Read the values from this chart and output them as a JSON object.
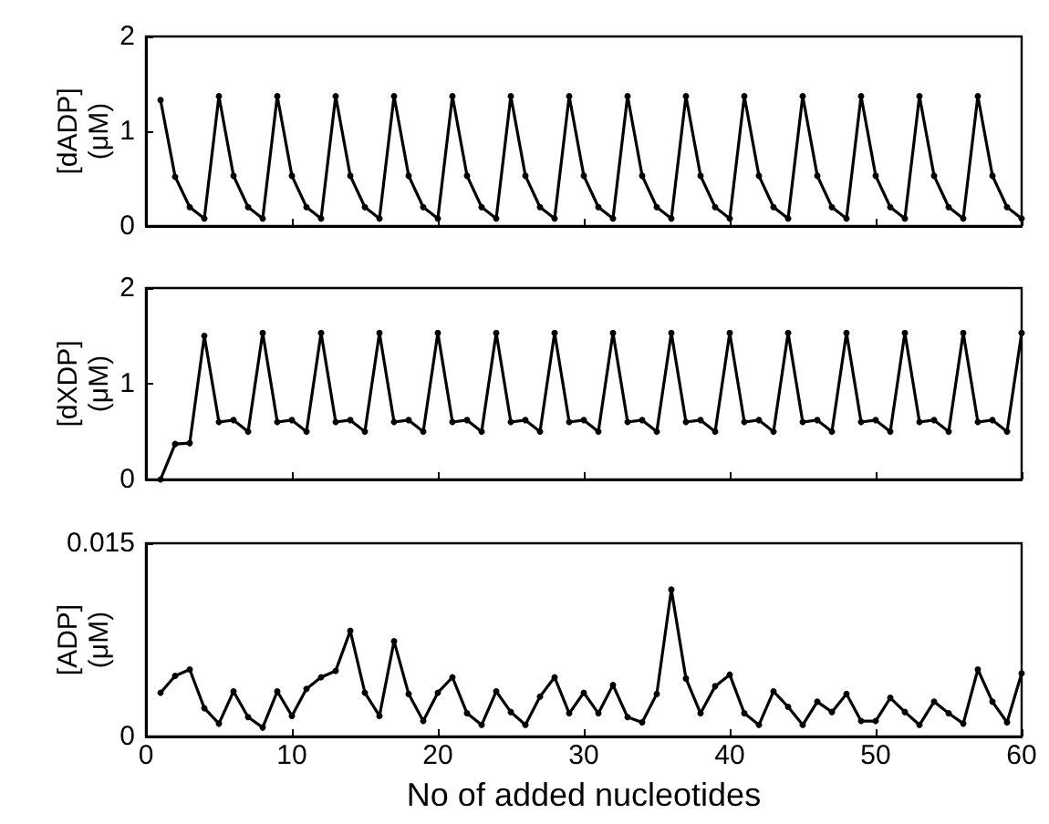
{
  "chart_data": [
    {
      "type": "line",
      "ylabel": "[dADP] (μM)",
      "xlim": [
        0,
        60
      ],
      "xticks": [
        0,
        10,
        20,
        30,
        40,
        50,
        60
      ],
      "ylim": [
        0,
        2
      ],
      "yticks": [
        0,
        1,
        2
      ],
      "tick_labels": "y",
      "marker": "circle",
      "line_style": "solid",
      "grid": false,
      "x": [
        1,
        2,
        3,
        4,
        5,
        6,
        7,
        8,
        9,
        10,
        11,
        12,
        13,
        14,
        15,
        16,
        17,
        18,
        19,
        20,
        21,
        22,
        23,
        24,
        25,
        26,
        27,
        28,
        29,
        30,
        31,
        32,
        33,
        34,
        35,
        36,
        37,
        38,
        39,
        40,
        41,
        42,
        43,
        44,
        45,
        46,
        47,
        48,
        49,
        50,
        51,
        52,
        53,
        54,
        55,
        56,
        57,
        58,
        59,
        60
      ],
      "series": [
        {
          "color": "#000000",
          "values": [
            1.33,
            0.52,
            0.2,
            0.08,
            1.37,
            0.53,
            0.2,
            0.08,
            1.37,
            0.53,
            0.2,
            0.08,
            1.37,
            0.53,
            0.2,
            0.08,
            1.37,
            0.53,
            0.2,
            0.08,
            1.37,
            0.53,
            0.2,
            0.08,
            1.37,
            0.53,
            0.2,
            0.08,
            1.37,
            0.53,
            0.2,
            0.08,
            1.37,
            0.53,
            0.2,
            0.08,
            1.37,
            0.53,
            0.2,
            0.08,
            1.37,
            0.53,
            0.2,
            0.08,
            1.37,
            0.53,
            0.2,
            0.08,
            1.37,
            0.53,
            0.2,
            0.08,
            1.37,
            0.53,
            0.2,
            0.08,
            1.37,
            0.53,
            0.2,
            0.08
          ]
        }
      ]
    },
    {
      "type": "line",
      "ylabel": "[dXDP] (μM)",
      "xlim": [
        0,
        60
      ],
      "xticks": [
        0,
        10,
        20,
        30,
        40,
        50,
        60
      ],
      "ylim": [
        0,
        2
      ],
      "yticks": [
        0,
        1,
        2
      ],
      "tick_labels": "y",
      "marker": "circle",
      "line_style": "solid",
      "grid": false,
      "x": [
        1,
        2,
        3,
        4,
        5,
        6,
        7,
        8,
        9,
        10,
        11,
        12,
        13,
        14,
        15,
        16,
        17,
        18,
        19,
        20,
        21,
        22,
        23,
        24,
        25,
        26,
        27,
        28,
        29,
        30,
        31,
        32,
        33,
        34,
        35,
        36,
        37,
        38,
        39,
        40,
        41,
        42,
        43,
        44,
        45,
        46,
        47,
        48,
        49,
        50,
        51,
        52,
        53,
        54,
        55,
        56,
        57,
        58,
        59,
        60
      ],
      "series": [
        {
          "color": "#000000",
          "values": [
            0,
            0.37,
            0.38,
            1.5,
            0.6,
            0.62,
            0.5,
            1.53,
            0.6,
            0.62,
            0.5,
            1.53,
            0.6,
            0.62,
            0.5,
            1.53,
            0.6,
            0.62,
            0.5,
            1.53,
            0.6,
            0.62,
            0.5,
            1.53,
            0.6,
            0.62,
            0.5,
            1.53,
            0.6,
            0.62,
            0.5,
            1.53,
            0.6,
            0.62,
            0.5,
            1.53,
            0.6,
            0.62,
            0.5,
            1.53,
            0.6,
            0.62,
            0.5,
            1.53,
            0.6,
            0.62,
            0.5,
            1.53,
            0.6,
            0.62,
            0.5,
            1.53,
            0.6,
            0.62,
            0.5,
            1.53,
            0.6,
            0.62,
            0.5,
            1.53
          ]
        }
      ]
    },
    {
      "type": "line",
      "ylabel": "[ADP] (μM)",
      "xlabel": "No of added nucleotides",
      "xlim": [
        0,
        60
      ],
      "xticks": [
        0,
        10,
        20,
        30,
        40,
        50,
        60
      ],
      "ylim": [
        0,
        0.015
      ],
      "yticks": [
        0,
        0.015
      ],
      "marker": "circle",
      "line_style": "solid",
      "grid": false,
      "x": [
        1,
        2,
        3,
        4,
        5,
        6,
        7,
        8,
        9,
        10,
        11,
        12,
        13,
        14,
        15,
        16,
        17,
        18,
        19,
        20,
        21,
        22,
        23,
        24,
        25,
        26,
        27,
        28,
        29,
        30,
        31,
        32,
        33,
        34,
        35,
        36,
        37,
        38,
        39,
        40,
        41,
        42,
        43,
        44,
        45,
        46,
        47,
        48,
        49,
        50,
        51,
        52,
        53,
        54,
        55,
        56,
        57,
        58,
        59,
        60
      ],
      "series": [
        {
          "color": "#000000",
          "values": [
            0.0034,
            0.0047,
            0.0052,
            0.0022,
            0.001,
            0.0035,
            0.0015,
            0.0007,
            0.0035,
            0.0016,
            0.0037,
            0.0046,
            0.0051,
            0.0082,
            0.0034,
            0.0016,
            0.0074,
            0.0033,
            0.0012,
            0.0034,
            0.0046,
            0.0018,
            0.0009,
            0.0035,
            0.0019,
            0.0009,
            0.0031,
            0.0046,
            0.0018,
            0.0034,
            0.0018,
            0.004,
            0.0015,
            0.0011,
            0.0033,
            0.0114,
            0.0045,
            0.0018,
            0.0039,
            0.0048,
            0.0018,
            0.0009,
            0.0035,
            0.0023,
            0.0009,
            0.0027,
            0.0019,
            0.0033,
            0.0012,
            0.0012,
            0.003,
            0.0019,
            0.0009,
            0.0027,
            0.0018,
            0.001,
            0.0052,
            0.0027,
            0.0011,
            0.0049
          ]
        }
      ]
    }
  ]
}
